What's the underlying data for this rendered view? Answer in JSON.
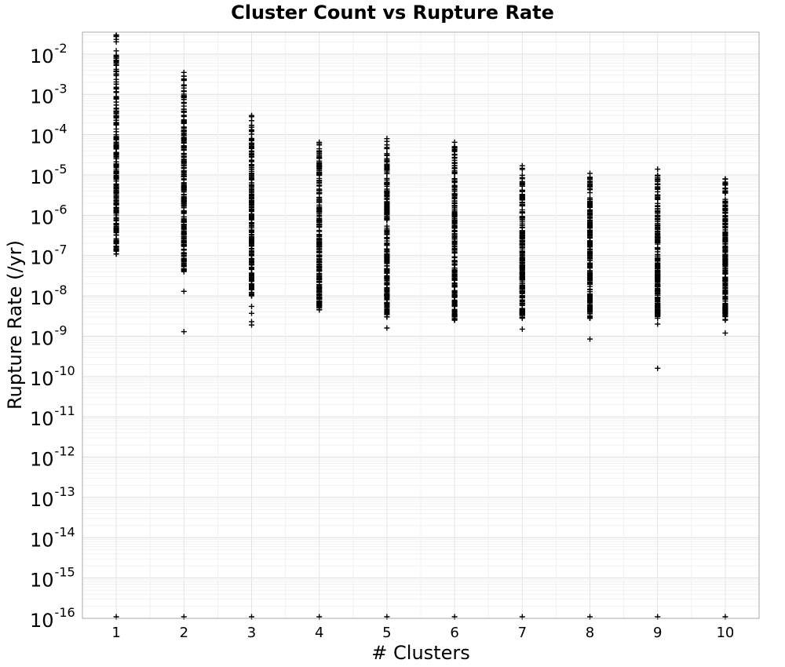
{
  "chart_data": {
    "type": "scatter",
    "title": "Cluster Count vs Rupture Rate",
    "xlabel": "# Clusters",
    "ylabel": "Rupture Rate (/yr)",
    "x_scale": "linear",
    "y_scale": "log",
    "xlim": [
      0.5,
      10.5
    ],
    "ylim": [
      1e-16,
      0.035
    ],
    "x_ticks": [
      1,
      2,
      3,
      4,
      5,
      6,
      7,
      8,
      9,
      10
    ],
    "y_tick_exponents": [
      -16,
      -15,
      -14,
      -13,
      -12,
      -11,
      -10,
      -9,
      -8,
      -7,
      -6,
      -5,
      -4,
      -3,
      -2
    ],
    "y_tick_base": "10",
    "grid": true,
    "marker": "+",
    "marker_color": "#000000",
    "series": [
      {
        "points": [
          {
            "x": 1,
            "y_min": 1.1e-07,
            "y_max": 0.03,
            "outliers": [
              1e-16
            ]
          },
          {
            "x": 2,
            "y_min": 4e-08,
            "y_max": 0.0035,
            "outliers": [
              1.3e-08,
              1.3e-09,
              1e-16
            ]
          },
          {
            "x": 3,
            "y_min": 1e-08,
            "y_max": 0.0003,
            "outliers": [
              5.5e-09,
              3.7e-09,
              2.3e-09,
              1.9e-09,
              1e-16
            ]
          },
          {
            "x": 4,
            "y_min": 4.5e-09,
            "y_max": 6.5e-05,
            "outliers": [
              1e-16
            ]
          },
          {
            "x": 5,
            "y_min": 3e-09,
            "y_max": 8e-05,
            "outliers": [
              1.6e-09,
              1e-16
            ]
          },
          {
            "x": 6,
            "y_min": 2.5e-09,
            "y_max": 6.5e-05,
            "outliers": [
              1e-16
            ]
          },
          {
            "x": 7,
            "y_min": 2.8e-09,
            "y_max": 1.7e-05,
            "outliers": [
              1.5e-09,
              1e-16
            ]
          },
          {
            "x": 8,
            "y_min": 2.8e-09,
            "y_max": 1.1e-05,
            "outliers": [
              8.5e-10,
              1e-16
            ]
          },
          {
            "x": 9,
            "y_min": 2.8e-09,
            "y_max": 1.4e-05,
            "outliers": [
              2e-09,
              1.6e-10,
              1e-16
            ]
          },
          {
            "x": 10,
            "y_min": 2.5e-09,
            "y_max": 8e-06,
            "outliers": [
              1.2e-09,
              1e-16
            ]
          }
        ]
      }
    ]
  }
}
